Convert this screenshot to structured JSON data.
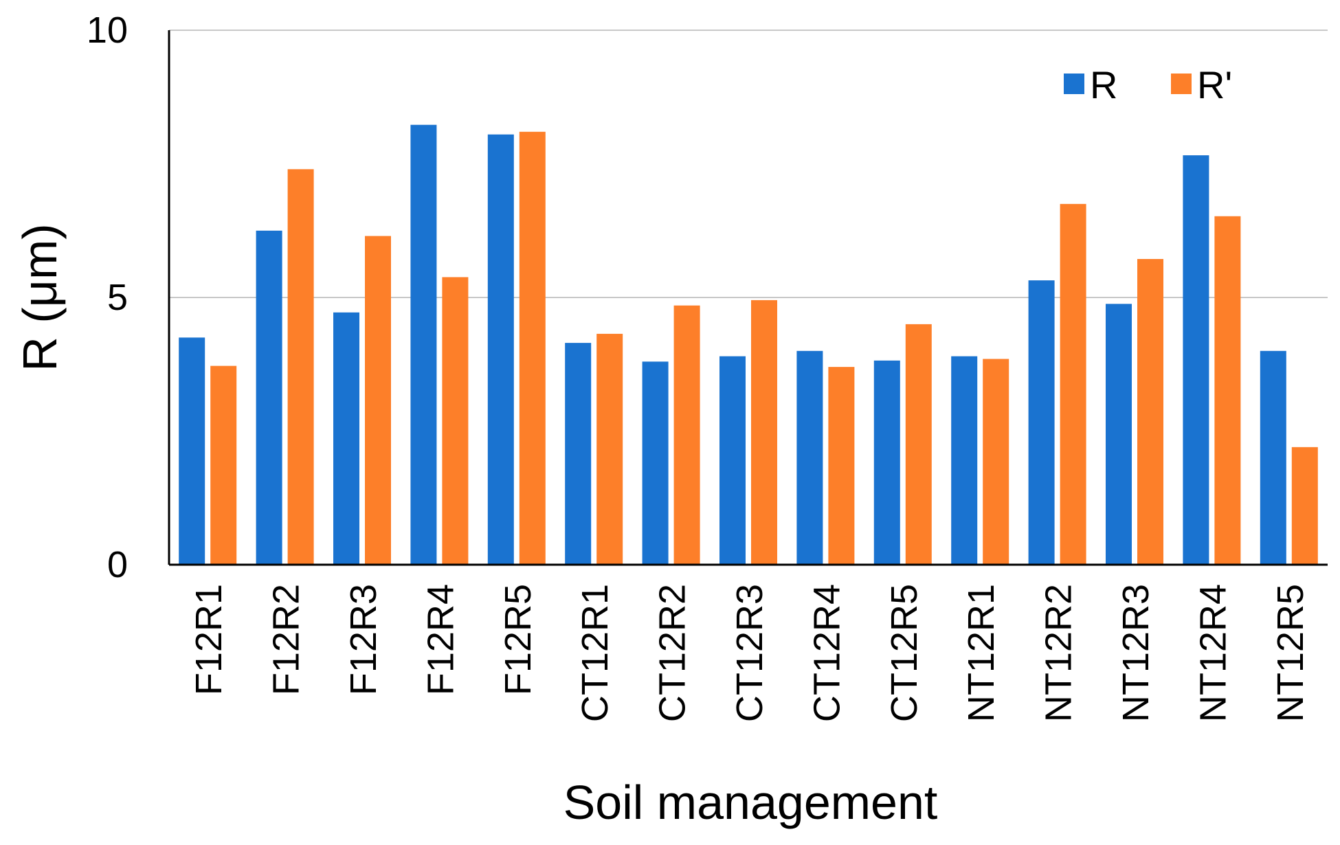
{
  "chart_data": {
    "type": "bar",
    "title": "",
    "xlabel": "Soil management",
    "ylabel": "R (μm)",
    "ylim": [
      0,
      10
    ],
    "yticks": [
      0,
      5,
      10
    ],
    "grid": true,
    "legend_position": "top-right",
    "categories": [
      "F12R1",
      "F12R2",
      "F12R3",
      "F12R4",
      "F12R5",
      "CT12R1",
      "CT12R2",
      "CT12R3",
      "CT12R4",
      "CT12R5",
      "NT12R1",
      "NT12R2",
      "NT12R3",
      "NT12R4",
      "NT12R5"
    ],
    "series": [
      {
        "name": "R",
        "color": "#1a73d0",
        "values": [
          4.25,
          6.25,
          4.72,
          8.23,
          8.05,
          4.15,
          3.8,
          3.9,
          4.0,
          3.82,
          3.9,
          5.32,
          4.88,
          7.66,
          4.0
        ]
      },
      {
        "name": "R'",
        "color": "#fd7f29",
        "values": [
          3.72,
          7.4,
          6.15,
          5.38,
          8.1,
          4.32,
          4.85,
          4.95,
          3.7,
          4.5,
          3.85,
          6.75,
          5.72,
          6.52,
          2.2
        ]
      }
    ]
  }
}
